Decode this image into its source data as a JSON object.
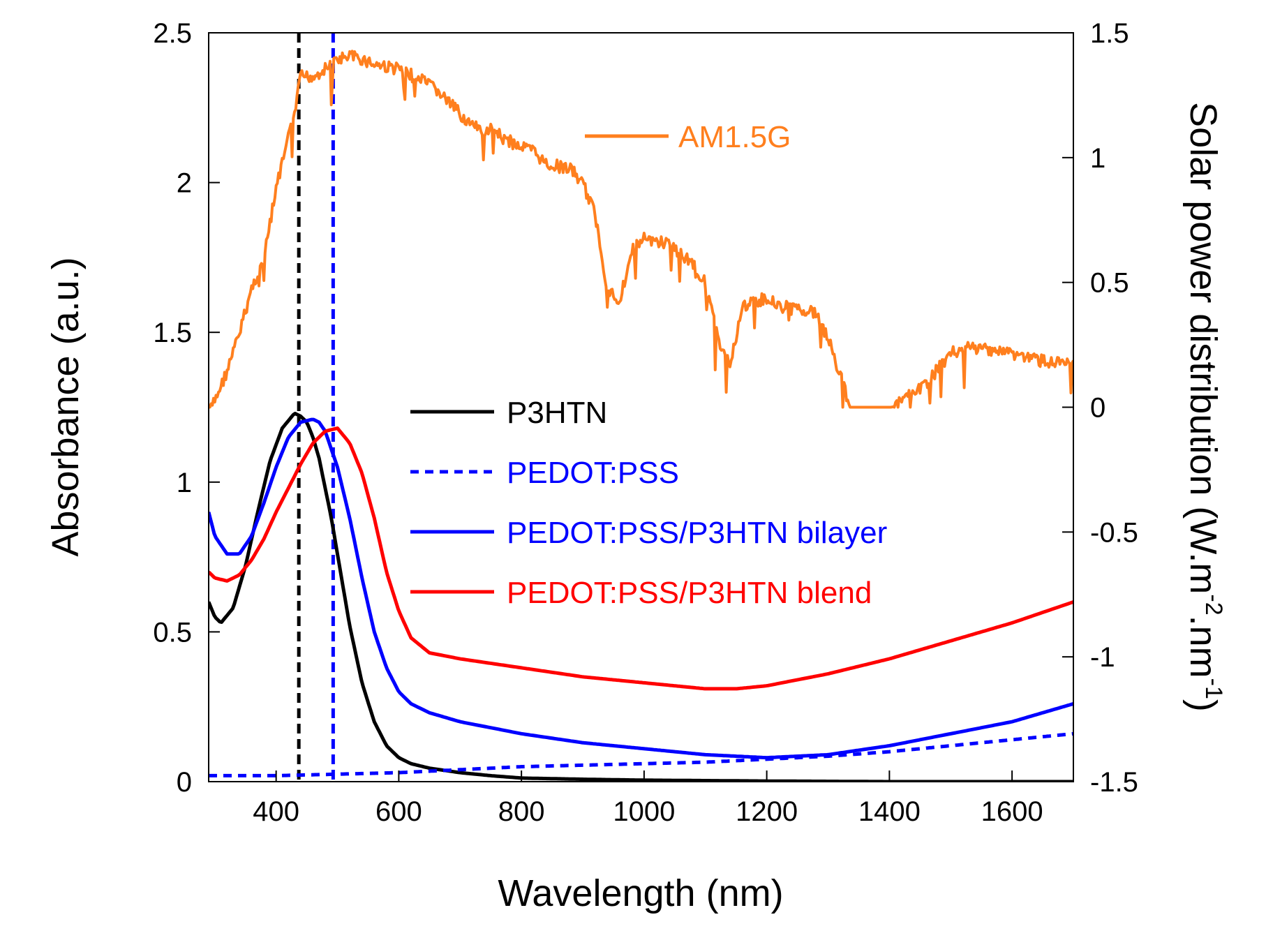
{
  "chart_data": {
    "type": "line",
    "xlabel": "Wavelength (nm)",
    "ylabel": "Absorbance (a.u.)",
    "y2label_main": "Solar power distribution  (W.m",
    "y2label_sup1": "-2",
    "y2label_mid": ".nm",
    "y2label_sup2": "-1",
    "y2label_end": ")",
    "xlim": [
      290,
      1700
    ],
    "ylim": [
      0,
      2.5
    ],
    "y2lim": [
      -1.5,
      1.5
    ],
    "xticks": [
      400,
      600,
      800,
      1000,
      1200,
      1400,
      1600
    ],
    "xtick_labels": [
      "400",
      "600",
      "800",
      "1000",
      "1200",
      "1400",
      "1600"
    ],
    "yticks": [
      0,
      0.5,
      1,
      1.5,
      2,
      2.5
    ],
    "ytick_labels": [
      "0",
      "0.5",
      "1",
      "1.5",
      "2",
      "2.5"
    ],
    "y2ticks": [
      -1.5,
      -1,
      -0.5,
      0,
      0.5,
      1,
      1.5
    ],
    "y2tick_labels": [
      "-1.5",
      "-1",
      "-0.5",
      "0",
      "0.5",
      "1",
      "1.5"
    ],
    "reference_lines": [
      {
        "x": 437,
        "color": "#000000"
      },
      {
        "x": 493,
        "color": "#0000ff"
      }
    ],
    "series": [
      {
        "name": "AM1.5G",
        "axis": "right",
        "color": "#ff7f1e",
        "style": "solid",
        "jagged": true,
        "x": [
          290,
          300,
          320,
          340,
          360,
          380,
          400,
          420,
          430,
          440,
          460,
          480,
          500,
          520,
          540,
          560,
          600,
          640,
          660,
          680,
          700,
          720,
          740,
          760,
          770,
          800,
          820,
          840,
          880,
          900,
          920,
          940,
          960,
          980,
          1000,
          1040,
          1080,
          1100,
          1120,
          1140,
          1160,
          1180,
          1200,
          1240,
          1260,
          1280,
          1300,
          1320,
          1340,
          1350,
          1400,
          1420,
          1440,
          1460,
          1480,
          1500,
          1520,
          1560,
          1600,
          1650,
          1700
        ],
        "y": [
          0.0,
          0.05,
          0.17,
          0.32,
          0.5,
          0.62,
          0.9,
          1.1,
          1.2,
          1.35,
          1.35,
          1.38,
          1.42,
          1.43,
          1.42,
          1.4,
          1.38,
          1.33,
          1.3,
          1.25,
          1.2,
          1.15,
          1.13,
          1.15,
          1.1,
          1.07,
          1.05,
          1.0,
          0.98,
          0.92,
          0.8,
          0.5,
          0.45,
          0.65,
          0.7,
          0.68,
          0.6,
          0.52,
          0.3,
          0.2,
          0.42,
          0.45,
          0.46,
          0.42,
          0.42,
          0.4,
          0.3,
          0.15,
          0.0,
          0.0,
          0.0,
          0.05,
          0.08,
          0.12,
          0.18,
          0.24,
          0.26,
          0.26,
          0.24,
          0.21,
          0.19
        ]
      },
      {
        "name": "P3HTN",
        "axis": "left",
        "color": "#000000",
        "style": "solid",
        "jagged": false,
        "x": [
          290,
          300,
          310,
          330,
          350,
          370,
          390,
          410,
          430,
          440,
          450,
          460,
          470,
          480,
          490,
          500,
          520,
          540,
          560,
          580,
          600,
          620,
          650,
          700,
          750,
          800,
          900,
          1000,
          1200,
          1400,
          1700
        ],
        "y": [
          0.6,
          0.55,
          0.53,
          0.58,
          0.72,
          0.9,
          1.07,
          1.18,
          1.23,
          1.22,
          1.2,
          1.15,
          1.08,
          0.98,
          0.88,
          0.76,
          0.52,
          0.33,
          0.2,
          0.12,
          0.08,
          0.06,
          0.045,
          0.03,
          0.02,
          0.012,
          0.008,
          0.005,
          0.002,
          0.0,
          0.0
        ]
      },
      {
        "name": "PEDOT:PSS",
        "axis": "left",
        "color": "#0000ff",
        "style": "dotted",
        "jagged": false,
        "x": [
          290,
          400,
          500,
          600,
          700,
          800,
          900,
          1000,
          1100,
          1200,
          1300,
          1400,
          1500,
          1600,
          1700
        ],
        "y": [
          0.02,
          0.02,
          0.025,
          0.03,
          0.04,
          0.05,
          0.055,
          0.06,
          0.065,
          0.075,
          0.085,
          0.1,
          0.12,
          0.14,
          0.16
        ]
      },
      {
        "name": "PEDOT:PSS/P3HTN bilayer",
        "axis": "left",
        "color": "#0000ff",
        "style": "solid",
        "jagged": false,
        "x": [
          290,
          300,
          320,
          340,
          360,
          380,
          400,
          420,
          440,
          460,
          470,
          480,
          500,
          520,
          540,
          560,
          580,
          600,
          620,
          650,
          700,
          800,
          900,
          1000,
          1100,
          1200,
          1300,
          1400,
          1500,
          1600,
          1700
        ],
        "y": [
          0.9,
          0.82,
          0.76,
          0.76,
          0.82,
          0.93,
          1.05,
          1.15,
          1.2,
          1.21,
          1.2,
          1.17,
          1.05,
          0.88,
          0.68,
          0.5,
          0.38,
          0.3,
          0.26,
          0.23,
          0.2,
          0.16,
          0.13,
          0.11,
          0.09,
          0.08,
          0.09,
          0.12,
          0.16,
          0.2,
          0.26
        ]
      },
      {
        "name": "PEDOT:PSS/P3HTN blend",
        "axis": "left",
        "color": "#ff0000",
        "style": "solid",
        "jagged": false,
        "x": [
          290,
          300,
          320,
          340,
          360,
          380,
          400,
          420,
          440,
          460,
          480,
          500,
          520,
          540,
          560,
          580,
          600,
          620,
          650,
          700,
          800,
          900,
          1000,
          1100,
          1150,
          1200,
          1300,
          1400,
          1500,
          1600,
          1700
        ],
        "y": [
          0.7,
          0.68,
          0.67,
          0.69,
          0.74,
          0.81,
          0.9,
          0.98,
          1.06,
          1.13,
          1.17,
          1.18,
          1.13,
          1.03,
          0.88,
          0.7,
          0.57,
          0.48,
          0.43,
          0.41,
          0.38,
          0.35,
          0.33,
          0.31,
          0.31,
          0.32,
          0.36,
          0.41,
          0.47,
          0.53,
          0.6
        ]
      }
    ]
  }
}
